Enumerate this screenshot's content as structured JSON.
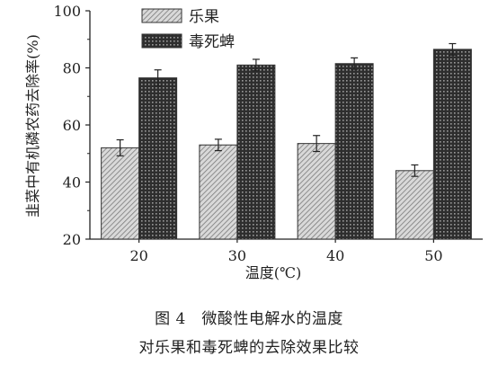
{
  "chart_data": {
    "type": "bar",
    "categories": [
      "20",
      "30",
      "40",
      "50"
    ],
    "series": [
      {
        "name": "乐果",
        "values": [
          52,
          53,
          53.5,
          44
        ],
        "errors": [
          2.8,
          2.0,
          2.8,
          2.0
        ],
        "pattern": "hatch-diagonal"
      },
      {
        "name": "毒死蜱",
        "values": [
          76.5,
          81,
          81.5,
          86.5
        ],
        "errors": [
          2.8,
          2.0,
          2.0,
          2.0
        ],
        "pattern": "crosshatch-dark"
      }
    ],
    "xlabel": "温度(℃)",
    "ylabel": "韭菜中有机磷农药去除率(%)",
    "ylim": [
      20,
      100
    ],
    "yticks": [
      "20",
      "40",
      "60",
      "80",
      "100"
    ],
    "grid": false,
    "legend_position": "top-left"
  },
  "caption": {
    "line1": "图 4　微酸性电解水的温度",
    "line2": "对乐果和毒死蜱的去除效果比较"
  },
  "colors": {
    "axis": "#222222",
    "series1_fill": "#cfcfcf",
    "series2_fill": "#3a3a3a"
  }
}
